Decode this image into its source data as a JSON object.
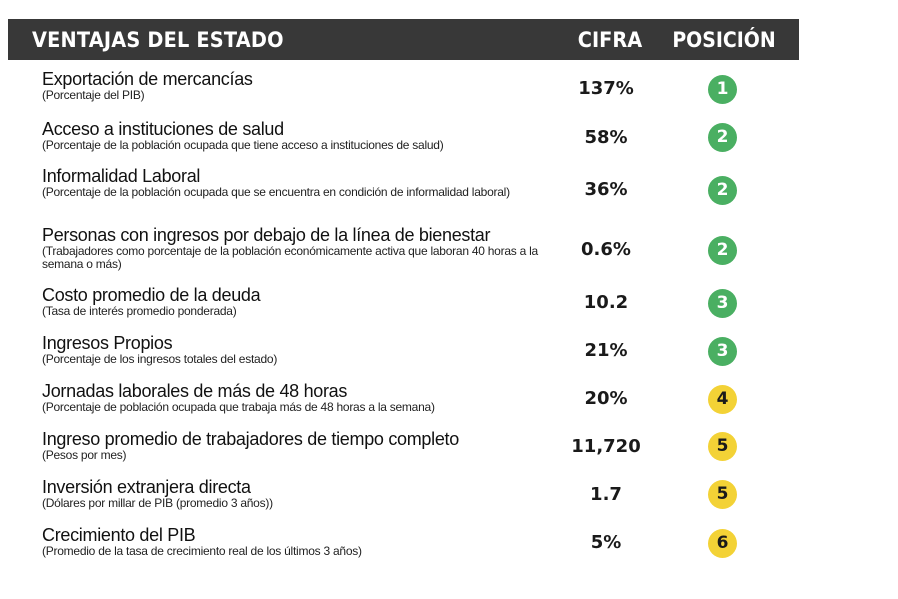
{
  "header": {
    "title": "Ventajas del estado",
    "cifra": "Cifra",
    "posicion": "Posición"
  },
  "colors": {
    "header_bg": "#383838",
    "green_badge": "#4aaf62",
    "yellow_badge": "#f3d236"
  },
  "rows": [
    {
      "title": "Exportación de mercancías",
      "subtitle": "(Porcentaje del PIB)",
      "value": "137%",
      "position": "1",
      "badge_color": "green"
    },
    {
      "title": "Acceso a instituciones de salud",
      "subtitle": "(Porcentaje de la población ocupada que tiene acceso a instituciones de salud)",
      "value": "58%",
      "position": "2",
      "badge_color": "green"
    },
    {
      "title": "Informalidad Laboral",
      "subtitle": "(Porcentaje de la población ocupada que se encuentra en condición de informalidad laboral)",
      "value": "36%",
      "position": "2",
      "badge_color": "green"
    },
    {
      "title": "Personas con ingresos por debajo de la línea de bienestar",
      "subtitle": "(Trabajadores como porcentaje de la población económicamente activa que laboran 40 horas a la semana o más)",
      "value": "0.6%",
      "position": "2",
      "badge_color": "green"
    },
    {
      "title": "Costo promedio de la deuda",
      "subtitle": "(Tasa de interés promedio ponderada)",
      "value": "10.2",
      "position": "3",
      "badge_color": "green"
    },
    {
      "title": "Ingresos Propios",
      "subtitle": "(Porcentaje de los ingresos totales del estado)",
      "value": "21%",
      "position": "3",
      "badge_color": "green"
    },
    {
      "title": "Jornadas laborales de más de 48 horas",
      "subtitle": "(Porcentaje de población ocupada que trabaja más de 48 horas a la semana)",
      "value": "20%",
      "position": "4",
      "badge_color": "yellow"
    },
    {
      "title": "Ingreso promedio de trabajadores de tiempo completo",
      "subtitle": "(Pesos por mes)",
      "value": "11,720",
      "position": "5",
      "badge_color": "yellow"
    },
    {
      "title": "Inversión extranjera directa",
      "subtitle": "(Dólares por millar de PIB (promedio 3 años))",
      "value": "1.7",
      "position": "5",
      "badge_color": "yellow"
    },
    {
      "title": "Crecimiento del PIB",
      "subtitle": "(Promedio de la tasa de crecimiento real de los últimos 3 años)",
      "value": "5%",
      "position": "6",
      "badge_color": "yellow"
    }
  ]
}
